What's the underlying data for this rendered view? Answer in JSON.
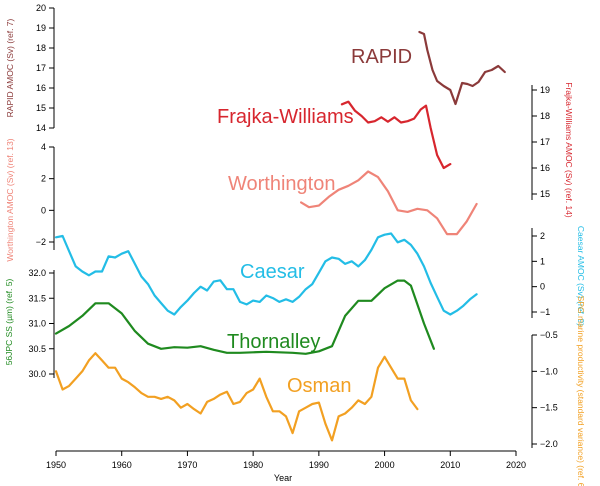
{
  "chart_data": {
    "type": "line",
    "x_axis": {
      "label": "Year",
      "range": [
        1950,
        2020
      ],
      "ticks": [
        1950,
        1960,
        1970,
        1980,
        1990,
        2000,
        2010,
        2020
      ]
    },
    "series": [
      {
        "id": "rapid",
        "name": "RAPID",
        "color": "#8b3a3a",
        "axis": {
          "side": "left",
          "label": "RAPID AMOC (Sv) (ref. 7)",
          "range": [
            14,
            20
          ],
          "ticks": [
            14,
            15,
            16,
            17,
            18,
            19,
            20
          ]
        },
        "x": [
          2005.3,
          2006.0,
          2006.5,
          2007.3,
          2008.0,
          2009.0,
          2010.0,
          2010.8,
          2011.8,
          2012.6,
          2013.4,
          2014.3,
          2015.3,
          2016.3,
          2017.3,
          2018.3
        ],
        "y": [
          18.8,
          18.7,
          17.9,
          16.9,
          16.35,
          16.1,
          15.9,
          15.2,
          16.25,
          16.2,
          16.1,
          16.3,
          16.8,
          16.9,
          17.1,
          16.8
        ]
      },
      {
        "id": "frajka",
        "name": "Frajka-Williams",
        "color": "#d7262e",
        "axis": {
          "side": "right",
          "label": "Frajka-Williams AMOC (Sv) (ref. 14)",
          "range": [
            14.6,
            19
          ],
          "ticks": [
            15,
            16,
            17,
            18,
            19
          ]
        },
        "x": [
          1993.5,
          1994.5,
          1995.5,
          1996.5,
          1997.5,
          1998.5,
          1999.5,
          2000.5,
          2001.5,
          2002.5,
          2003.5,
          2004.5,
          2005.5,
          2006.3,
          2007.0,
          2008.0,
          2009.0,
          2010.0
        ],
        "y": [
          18.45,
          18.55,
          18.2,
          18.0,
          17.75,
          17.8,
          17.95,
          17.78,
          17.95,
          17.75,
          17.8,
          17.9,
          18.25,
          18.4,
          17.55,
          16.5,
          16.0,
          16.15
        ]
      },
      {
        "id": "worthington",
        "name": "Worthington",
        "color": "#ef8478",
        "axis": {
          "side": "left",
          "label": "Worthington AMOC (Sv) (ref. 13)",
          "range": [
            -2.6,
            4
          ],
          "ticks": [
            -2,
            0,
            2,
            4
          ]
        },
        "x": [
          1987.3,
          1988.5,
          1990.0,
          1991.5,
          1993.0,
          1994.5,
          1996.0,
          1997.5,
          1999.0,
          2000.5,
          2002.0,
          2003.5,
          2005.0,
          2006.5,
          2008.0,
          2009.5,
          2011.0,
          2012.5,
          2014.0
        ],
        "y": [
          0.5,
          0.2,
          0.3,
          0.85,
          1.3,
          1.55,
          1.9,
          2.45,
          2.1,
          1.2,
          0.0,
          -0.1,
          0.1,
          0.0,
          -0.5,
          -1.5,
          -1.5,
          -0.7,
          0.4
        ]
      },
      {
        "id": "caesar",
        "name": "Caesar",
        "color": "#23bde6",
        "axis": {
          "side": "right",
          "label": "Caesar AMOC (Sv) (ref. 9)",
          "range": [
            -1.5,
            2.5
          ],
          "ticks": [
            -1,
            0,
            1,
            2
          ]
        },
        "x": [
          1950,
          1951,
          1952,
          1953,
          1954,
          1955,
          1956,
          1957,
          1958,
          1959,
          1960,
          1961,
          1962,
          1963,
          1964,
          1965,
          1966,
          1967,
          1968,
          1969,
          1970,
          1971,
          1972,
          1973,
          1974,
          1975,
          1976,
          1977,
          1978,
          1979,
          1980,
          1981,
          1982,
          1983,
          1984,
          1985,
          1986,
          1987,
          1988,
          1989,
          1990,
          1991,
          1992,
          1993,
          1994,
          1995,
          1996,
          1997,
          1998,
          1999,
          2000,
          2001,
          2002,
          2003,
          2004,
          2005,
          2006,
          2007,
          2008,
          2009,
          2010,
          2011,
          2012,
          2013,
          2014
        ],
        "y": [
          1.95,
          2.0,
          1.4,
          0.8,
          0.6,
          0.45,
          0.6,
          0.6,
          1.2,
          1.15,
          1.3,
          1.4,
          0.9,
          0.4,
          0.1,
          -0.35,
          -0.65,
          -0.95,
          -1.1,
          -0.8,
          -0.55,
          -0.25,
          0.0,
          -0.15,
          0.2,
          0.25,
          -0.1,
          -0.1,
          -0.6,
          -0.7,
          -0.55,
          -0.6,
          -0.35,
          -0.45,
          -0.6,
          -0.5,
          -0.6,
          -0.4,
          -0.1,
          0.1,
          0.55,
          1.0,
          1.15,
          1.1,
          0.9,
          1.0,
          0.8,
          1.05,
          1.45,
          1.95,
          2.05,
          2.1,
          1.75,
          1.85,
          1.65,
          1.3,
          0.8,
          0.15,
          -0.4,
          -0.95,
          -1.1,
          -0.95,
          -0.75,
          -0.5,
          -0.3
        ]
      },
      {
        "id": "thornalley",
        "name": "Thornalley",
        "color": "#1f8a1f",
        "axis": {
          "side": "left",
          "label": "56JPC SS (µm) (ref. 5)",
          "range": [
            30.0,
            32.0
          ],
          "ticks": [
            30.0,
            30.5,
            31.0,
            31.5,
            32.0
          ]
        },
        "x": [
          1950,
          1952,
          1954,
          1956,
          1958,
          1960,
          1962,
          1964,
          1966,
          1968,
          1970,
          1972,
          1974,
          1976,
          1978,
          1980,
          1982,
          1984,
          1986,
          1988,
          1990,
          1992,
          1994,
          1996,
          1998,
          2000,
          2002,
          2003,
          2004,
          2006,
          2007.5
        ],
        "y": [
          30.8,
          30.95,
          31.15,
          31.4,
          31.4,
          31.2,
          30.85,
          30.6,
          30.5,
          30.53,
          30.52,
          30.55,
          30.48,
          30.42,
          30.42,
          30.43,
          30.44,
          30.43,
          30.42,
          30.4,
          30.45,
          30.55,
          31.15,
          31.45,
          31.45,
          31.7,
          31.85,
          31.85,
          31.75,
          31.0,
          30.5
        ]
      },
      {
        "id": "osman",
        "name": "Osman",
        "color": "#f2a022",
        "axis": {
          "side": "right",
          "label": "SPG marine productivity (standard variance) (ref. 6)",
          "range": [
            -2.1,
            -0.5
          ],
          "ticks": [
            -0.5,
            -1.0,
            -1.5,
            -2.0
          ]
        },
        "x": [
          1950,
          1951,
          1952,
          1953,
          1954,
          1955,
          1956,
          1957,
          1958,
          1959,
          1960,
          1961,
          1962,
          1963,
          1964,
          1965,
          1966,
          1967,
          1968,
          1969,
          1970,
          1971,
          1972,
          1973,
          1974,
          1975,
          1976,
          1977,
          1978,
          1979,
          1980,
          1981,
          1982,
          1983,
          1984,
          1985,
          1986,
          1987,
          1988,
          1989,
          1990,
          1991,
          1992,
          1993,
          1994,
          1995,
          1996,
          1997,
          1998,
          1999,
          2000,
          2001,
          2002,
          2003,
          2004,
          2005
        ],
        "y": [
          -1.0,
          -1.25,
          -1.2,
          -1.1,
          -1.0,
          -0.85,
          -0.75,
          -0.85,
          -0.95,
          -0.95,
          -1.1,
          -1.15,
          -1.22,
          -1.3,
          -1.35,
          -1.35,
          -1.38,
          -1.35,
          -1.4,
          -1.5,
          -1.45,
          -1.52,
          -1.58,
          -1.42,
          -1.38,
          -1.32,
          -1.28,
          -1.45,
          -1.42,
          -1.3,
          -1.25,
          -1.1,
          -1.35,
          -1.55,
          -1.55,
          -1.62,
          -1.85,
          -1.55,
          -1.5,
          -1.45,
          -1.43,
          -1.72,
          -1.95,
          -1.62,
          -1.58,
          -1.5,
          -1.4,
          -1.45,
          -1.35,
          -0.95,
          -0.8,
          -0.95,
          -1.1,
          -1.1,
          -1.4,
          -1.52
        ]
      }
    ]
  }
}
